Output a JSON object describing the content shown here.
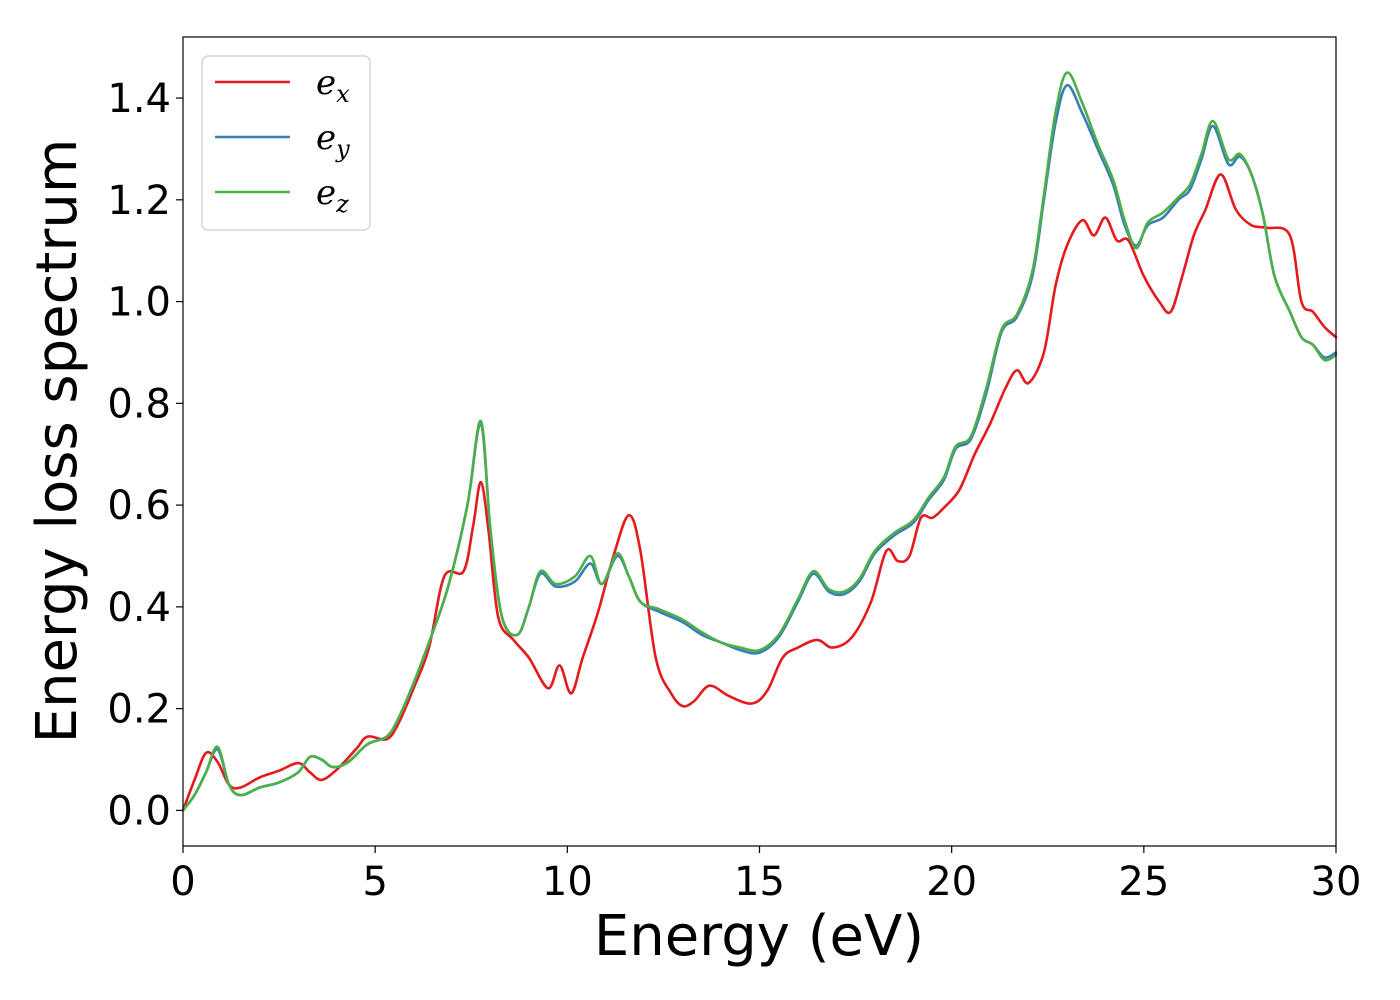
{
  "chart_data": {
    "type": "line",
    "title": "",
    "xlabel": "Energy (eV)",
    "ylabel": "Energy loss spectrum",
    "xlim": [
      0,
      30
    ],
    "ylim": [
      -0.07,
      1.52
    ],
    "xticks": [
      0,
      5,
      10,
      15,
      20,
      25,
      30
    ],
    "xtick_labels": [
      "0",
      "5",
      "10",
      "15",
      "20",
      "25",
      "30"
    ],
    "yticks": [
      0.0,
      0.2,
      0.4,
      0.6,
      0.8,
      1.0,
      1.2,
      1.4
    ],
    "ytick_labels": [
      "0.0",
      "0.2",
      "0.4",
      "0.6",
      "0.8",
      "1.0",
      "1.2",
      "1.4"
    ],
    "grid": false,
    "legend_position": "top-left",
    "series": [
      {
        "name": "e_x",
        "label_base": "e",
        "label_sub": "x",
        "color": "#e41a1c",
        "points": [
          [
            0,
            0.0
          ],
          [
            0.3,
            0.06
          ],
          [
            0.6,
            0.113
          ],
          [
            0.9,
            0.095
          ],
          [
            1.2,
            0.05
          ],
          [
            1.5,
            0.045
          ],
          [
            2.0,
            0.065
          ],
          [
            2.5,
            0.078
          ],
          [
            3.0,
            0.093
          ],
          [
            3.3,
            0.075
          ],
          [
            3.6,
            0.06
          ],
          [
            4.0,
            0.08
          ],
          [
            4.5,
            0.12
          ],
          [
            4.8,
            0.145
          ],
          [
            5.3,
            0.14
          ],
          [
            5.6,
            0.17
          ],
          [
            6.0,
            0.24
          ],
          [
            6.4,
            0.32
          ],
          [
            6.8,
            0.46
          ],
          [
            7.3,
            0.47
          ],
          [
            7.55,
            0.56
          ],
          [
            7.75,
            0.645
          ],
          [
            7.95,
            0.55
          ],
          [
            8.2,
            0.38
          ],
          [
            8.6,
            0.335
          ],
          [
            9.0,
            0.3
          ],
          [
            9.5,
            0.24
          ],
          [
            9.8,
            0.285
          ],
          [
            10.1,
            0.23
          ],
          [
            10.4,
            0.3
          ],
          [
            10.8,
            0.39
          ],
          [
            11.2,
            0.5
          ],
          [
            11.6,
            0.58
          ],
          [
            11.9,
            0.51
          ],
          [
            12.3,
            0.3
          ],
          [
            12.7,
            0.23
          ],
          [
            13.0,
            0.205
          ],
          [
            13.3,
            0.215
          ],
          [
            13.7,
            0.245
          ],
          [
            14.2,
            0.225
          ],
          [
            14.8,
            0.21
          ],
          [
            15.2,
            0.235
          ],
          [
            15.6,
            0.3
          ],
          [
            16.0,
            0.32
          ],
          [
            16.5,
            0.335
          ],
          [
            16.9,
            0.32
          ],
          [
            17.4,
            0.34
          ],
          [
            17.9,
            0.41
          ],
          [
            18.3,
            0.51
          ],
          [
            18.6,
            0.49
          ],
          [
            18.9,
            0.5
          ],
          [
            19.2,
            0.575
          ],
          [
            19.5,
            0.575
          ],
          [
            19.8,
            0.595
          ],
          [
            20.2,
            0.63
          ],
          [
            20.6,
            0.7
          ],
          [
            21.0,
            0.76
          ],
          [
            21.4,
            0.83
          ],
          [
            21.7,
            0.865
          ],
          [
            22.0,
            0.84
          ],
          [
            22.4,
            0.9
          ],
          [
            22.7,
            1.03
          ],
          [
            23.0,
            1.11
          ],
          [
            23.4,
            1.16
          ],
          [
            23.7,
            1.13
          ],
          [
            24.0,
            1.165
          ],
          [
            24.3,
            1.12
          ],
          [
            24.6,
            1.12
          ],
          [
            25.0,
            1.05
          ],
          [
            25.4,
            1.0
          ],
          [
            25.7,
            0.98
          ],
          [
            26.0,
            1.05
          ],
          [
            26.3,
            1.13
          ],
          [
            26.6,
            1.18
          ],
          [
            27.0,
            1.25
          ],
          [
            27.4,
            1.18
          ],
          [
            27.8,
            1.15
          ],
          [
            28.2,
            1.145
          ],
          [
            28.8,
            1.13
          ],
          [
            29.1,
            1.0
          ],
          [
            29.4,
            0.98
          ],
          [
            29.7,
            0.95
          ],
          [
            30.0,
            0.93
          ]
        ]
      },
      {
        "name": "e_y",
        "label_base": "e",
        "label_sub": "y",
        "color": "#377eb8",
        "points": [
          [
            0,
            0.0
          ],
          [
            0.3,
            0.03
          ],
          [
            0.6,
            0.075
          ],
          [
            0.9,
            0.12
          ],
          [
            1.2,
            0.05
          ],
          [
            1.5,
            0.03
          ],
          [
            2.0,
            0.045
          ],
          [
            2.5,
            0.055
          ],
          [
            3.0,
            0.075
          ],
          [
            3.3,
            0.105
          ],
          [
            3.6,
            0.1
          ],
          [
            3.9,
            0.085
          ],
          [
            4.3,
            0.095
          ],
          [
            4.8,
            0.13
          ],
          [
            5.3,
            0.145
          ],
          [
            5.6,
            0.18
          ],
          [
            6.0,
            0.25
          ],
          [
            6.4,
            0.33
          ],
          [
            6.9,
            0.44
          ],
          [
            7.4,
            0.6
          ],
          [
            7.75,
            0.76
          ],
          [
            8.0,
            0.55
          ],
          [
            8.3,
            0.38
          ],
          [
            8.7,
            0.345
          ],
          [
            9.0,
            0.4
          ],
          [
            9.3,
            0.465
          ],
          [
            9.7,
            0.44
          ],
          [
            10.2,
            0.45
          ],
          [
            10.6,
            0.485
          ],
          [
            10.9,
            0.445
          ],
          [
            11.3,
            0.5
          ],
          [
            11.6,
            0.46
          ],
          [
            11.9,
            0.41
          ],
          [
            12.4,
            0.39
          ],
          [
            13.0,
            0.37
          ],
          [
            13.5,
            0.345
          ],
          [
            14.0,
            0.33
          ],
          [
            14.5,
            0.315
          ],
          [
            15.0,
            0.31
          ],
          [
            15.5,
            0.34
          ],
          [
            16.0,
            0.41
          ],
          [
            16.4,
            0.465
          ],
          [
            16.8,
            0.43
          ],
          [
            17.2,
            0.425
          ],
          [
            17.6,
            0.45
          ],
          [
            18.0,
            0.505
          ],
          [
            18.5,
            0.54
          ],
          [
            19.0,
            0.565
          ],
          [
            19.4,
            0.61
          ],
          [
            19.8,
            0.65
          ],
          [
            20.1,
            0.71
          ],
          [
            20.5,
            0.73
          ],
          [
            20.9,
            0.82
          ],
          [
            21.3,
            0.94
          ],
          [
            21.7,
            0.97
          ],
          [
            22.1,
            1.05
          ],
          [
            22.4,
            1.2
          ],
          [
            22.7,
            1.35
          ],
          [
            23.0,
            1.425
          ],
          [
            23.4,
            1.37
          ],
          [
            23.8,
            1.3
          ],
          [
            24.2,
            1.23
          ],
          [
            24.5,
            1.15
          ],
          [
            24.8,
            1.11
          ],
          [
            25.1,
            1.15
          ],
          [
            25.5,
            1.165
          ],
          [
            25.9,
            1.2
          ],
          [
            26.2,
            1.22
          ],
          [
            26.5,
            1.28
          ],
          [
            26.8,
            1.345
          ],
          [
            27.2,
            1.27
          ],
          [
            27.5,
            1.285
          ],
          [
            27.8,
            1.25
          ],
          [
            28.1,
            1.17
          ],
          [
            28.4,
            1.05
          ],
          [
            28.8,
            0.98
          ],
          [
            29.1,
            0.93
          ],
          [
            29.4,
            0.915
          ],
          [
            29.7,
            0.89
          ],
          [
            30.0,
            0.9
          ]
        ]
      },
      {
        "name": "e_z",
        "label_base": "e",
        "label_sub": "z",
        "color": "#4daf4a",
        "points": [
          [
            0,
            0.0
          ],
          [
            0.3,
            0.03
          ],
          [
            0.6,
            0.075
          ],
          [
            0.9,
            0.125
          ],
          [
            1.2,
            0.05
          ],
          [
            1.5,
            0.03
          ],
          [
            2.0,
            0.045
          ],
          [
            2.5,
            0.055
          ],
          [
            3.0,
            0.075
          ],
          [
            3.3,
            0.105
          ],
          [
            3.6,
            0.1
          ],
          [
            3.9,
            0.085
          ],
          [
            4.3,
            0.095
          ],
          [
            4.8,
            0.13
          ],
          [
            5.3,
            0.145
          ],
          [
            5.6,
            0.18
          ],
          [
            6.0,
            0.25
          ],
          [
            6.4,
            0.33
          ],
          [
            6.9,
            0.44
          ],
          [
            7.4,
            0.6
          ],
          [
            7.75,
            0.765
          ],
          [
            8.0,
            0.55
          ],
          [
            8.3,
            0.38
          ],
          [
            8.7,
            0.345
          ],
          [
            9.0,
            0.4
          ],
          [
            9.3,
            0.47
          ],
          [
            9.7,
            0.445
          ],
          [
            10.2,
            0.46
          ],
          [
            10.6,
            0.5
          ],
          [
            10.9,
            0.445
          ],
          [
            11.3,
            0.505
          ],
          [
            11.6,
            0.46
          ],
          [
            11.9,
            0.41
          ],
          [
            12.4,
            0.395
          ],
          [
            13.0,
            0.375
          ],
          [
            13.5,
            0.35
          ],
          [
            14.0,
            0.33
          ],
          [
            14.5,
            0.32
          ],
          [
            15.0,
            0.315
          ],
          [
            15.5,
            0.345
          ],
          [
            16.0,
            0.415
          ],
          [
            16.4,
            0.47
          ],
          [
            16.8,
            0.435
          ],
          [
            17.2,
            0.43
          ],
          [
            17.6,
            0.455
          ],
          [
            18.0,
            0.51
          ],
          [
            18.5,
            0.545
          ],
          [
            19.0,
            0.57
          ],
          [
            19.4,
            0.615
          ],
          [
            19.8,
            0.655
          ],
          [
            20.1,
            0.715
          ],
          [
            20.5,
            0.735
          ],
          [
            20.9,
            0.83
          ],
          [
            21.3,
            0.945
          ],
          [
            21.7,
            0.975
          ],
          [
            22.1,
            1.06
          ],
          [
            22.4,
            1.21
          ],
          [
            22.7,
            1.37
          ],
          [
            23.0,
            1.45
          ],
          [
            23.4,
            1.39
          ],
          [
            23.8,
            1.31
          ],
          [
            24.2,
            1.24
          ],
          [
            24.5,
            1.16
          ],
          [
            24.8,
            1.105
          ],
          [
            25.1,
            1.155
          ],
          [
            25.5,
            1.175
          ],
          [
            25.9,
            1.205
          ],
          [
            26.2,
            1.23
          ],
          [
            26.5,
            1.29
          ],
          [
            26.8,
            1.355
          ],
          [
            27.2,
            1.28
          ],
          [
            27.5,
            1.29
          ],
          [
            27.8,
            1.25
          ],
          [
            28.1,
            1.17
          ],
          [
            28.4,
            1.05
          ],
          [
            28.8,
            0.98
          ],
          [
            29.1,
            0.93
          ],
          [
            29.4,
            0.915
          ],
          [
            29.7,
            0.885
          ],
          [
            30.0,
            0.895
          ]
        ]
      }
    ]
  }
}
